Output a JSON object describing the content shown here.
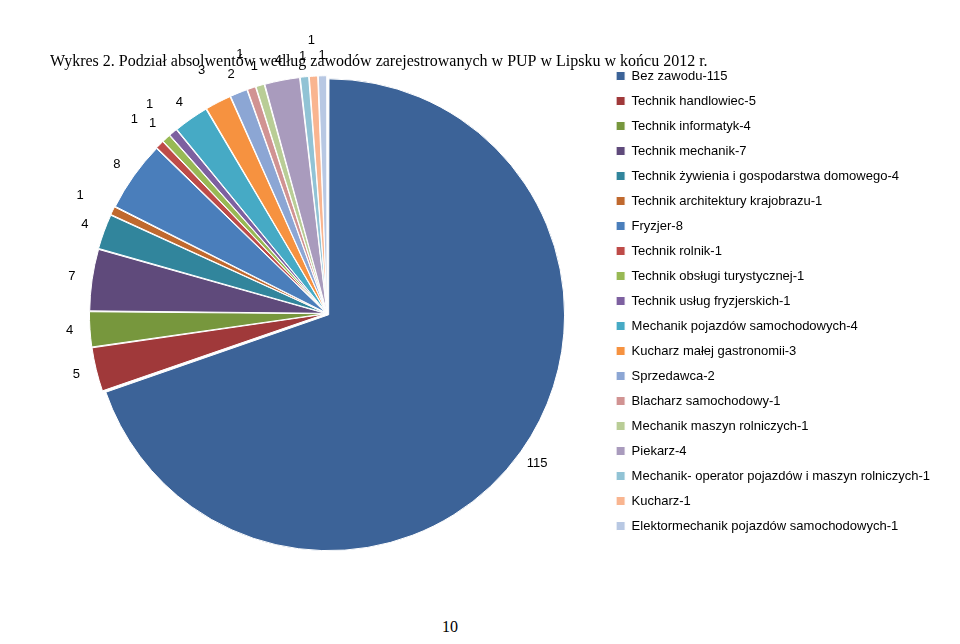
{
  "chart_data": {
    "type": "pie",
    "title": "Wykres 2. Podział absolwentów według zawodów zarejestrowanych w PUP w Lipsku w końcu 2012 r.",
    "categories": [
      "Bez zawodu-115",
      "Technik handlowiec-5",
      "Technik informatyk-4",
      "Technik mechanik-7",
      "Technik żywienia i gospodarstwa domowego-4",
      "Technik architektury krajobrazu-1",
      "Fryzjer-8",
      "Technik rolnik-1",
      "Technik obsługi turystycznej-1",
      "Technik usług fryzjerskich-1",
      "Mechanik pojazdów samochodowych-4",
      "Kucharz małej gastronomii-3",
      "Sprzedawca-2",
      "Blacharz samochodowy-1",
      "Mechanik maszyn rolniczych-1",
      "Piekarz-4",
      "Mechanik- operator pojazdów i maszyn rolniczych-1",
      "Kucharz-1",
      "Elektormechanik pojazdów samochodowych-1"
    ],
    "values": [
      115,
      5,
      4,
      7,
      4,
      1,
      8,
      1,
      1,
      1,
      4,
      3,
      2,
      1,
      1,
      4,
      1,
      1,
      1
    ],
    "colors": [
      "#3C6398",
      "#A0393A",
      "#77973D",
      "#5F4A7B",
      "#31859C",
      "#C0692E",
      "#4A7EBB",
      "#BE4B48",
      "#98B954",
      "#7D60A0",
      "#46AAC5",
      "#F69240",
      "#8CA6D4",
      "#D19392",
      "#B9CD96",
      "#A99BBD",
      "#91C3D5",
      "#F9B590",
      "#B8C8E3"
    ],
    "legend": "right",
    "data_labels": true
  },
  "footer": "10"
}
